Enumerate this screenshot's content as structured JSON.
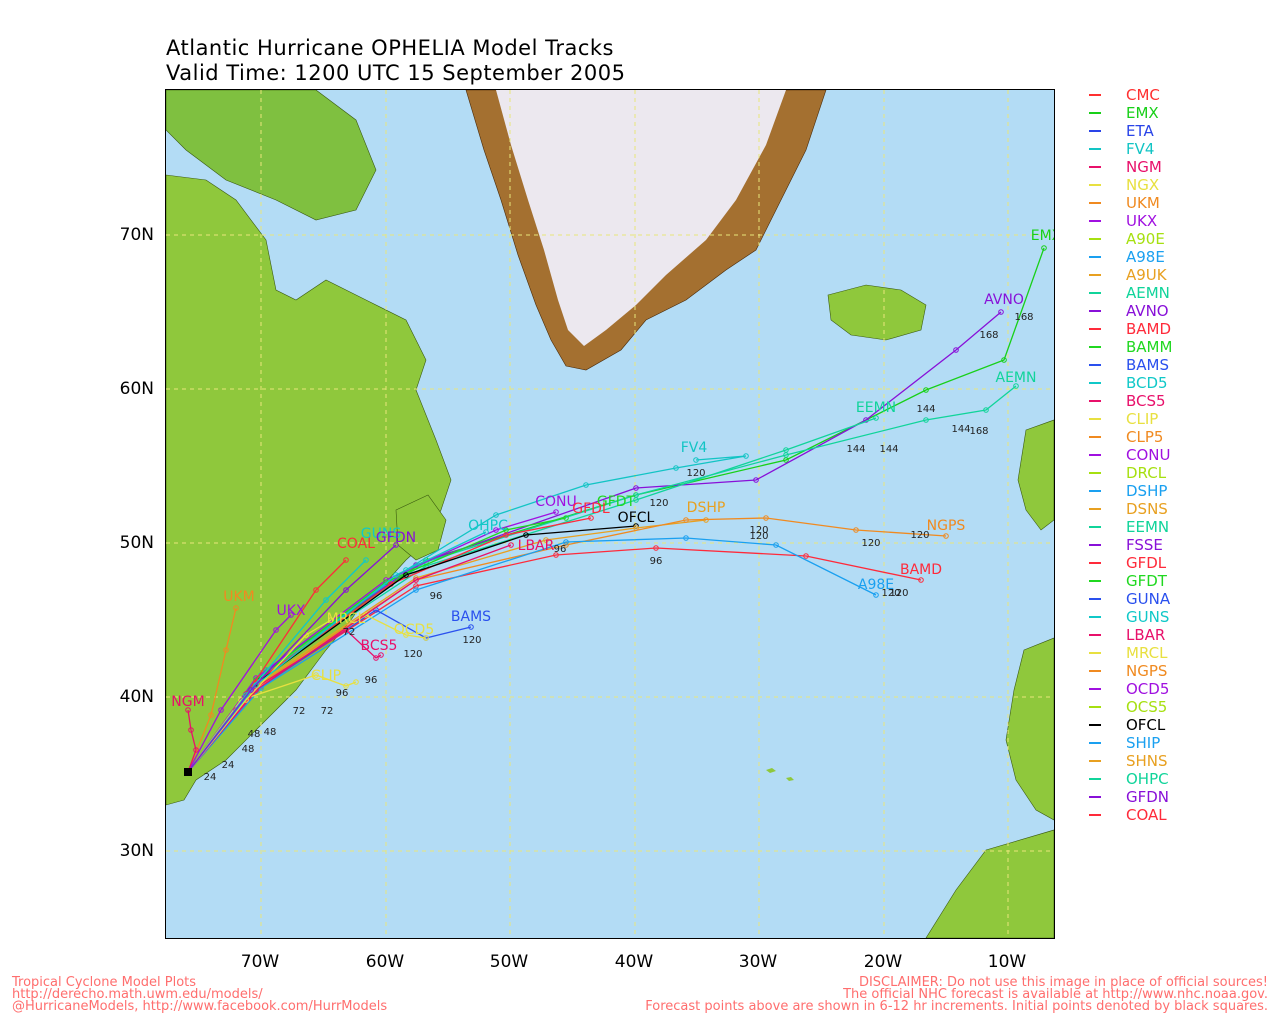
{
  "title": {
    "line1": "Atlantic Hurricane OPHELIA Model Tracks",
    "line2": "Valid Time: 1200 UTC 15 September 2005"
  },
  "axes": {
    "lat_ticks": [
      "70N",
      "60N",
      "50N",
      "40N",
      "30N"
    ],
    "lon_ticks": [
      "70W",
      "60W",
      "50W",
      "40W",
      "30W",
      "20W",
      "10W"
    ]
  },
  "map_colors": {
    "ocean": "#b3dcf5",
    "lowland": "#8fc83c",
    "highland": "#7a4a18",
    "ice": "#ece8ef",
    "grid": "#e8e67a"
  },
  "legend": [
    {
      "name": "CMC",
      "color": "#ff3030"
    },
    {
      "name": "EMX",
      "color": "#18d018"
    },
    {
      "name": "ETA",
      "color": "#2a44e8"
    },
    {
      "name": "FV4",
      "color": "#12c4c4"
    },
    {
      "name": "NGM",
      "color": "#e8106a"
    },
    {
      "name": "NGX",
      "color": "#e8e040"
    },
    {
      "name": "UKM",
      "color": "#f08a20"
    },
    {
      "name": "UKX",
      "color": "#a010e0"
    },
    {
      "name": "A90E",
      "color": "#a6e010"
    },
    {
      "name": "A98E",
      "color": "#1aa0f0"
    },
    {
      "name": "A9UK",
      "color": "#e8a020"
    },
    {
      "name": "AEMN",
      "color": "#10d49a"
    },
    {
      "name": "AVNO",
      "color": "#8810d8"
    },
    {
      "name": "BAMD",
      "color": "#ff2a3a"
    },
    {
      "name": "BAMM",
      "color": "#20d820"
    },
    {
      "name": "BAMS",
      "color": "#2a50ee"
    },
    {
      "name": "BCD5",
      "color": "#10c8c8"
    },
    {
      "name": "BCS5",
      "color": "#e8106a"
    },
    {
      "name": "CLIP",
      "color": "#e8e040"
    },
    {
      "name": "CLP5",
      "color": "#f08a20"
    },
    {
      "name": "CONU",
      "color": "#a010e0"
    },
    {
      "name": "DRCL",
      "color": "#a6e010"
    },
    {
      "name": "DSHP",
      "color": "#1aa0f0"
    },
    {
      "name": "DSNS",
      "color": "#e8a020"
    },
    {
      "name": "EEMN",
      "color": "#10d49a"
    },
    {
      "name": "FSSE",
      "color": "#8810d8"
    },
    {
      "name": "GFDL",
      "color": "#ff2a3a"
    },
    {
      "name": "GFDT",
      "color": "#20d820"
    },
    {
      "name": "GUNA",
      "color": "#2a50ee"
    },
    {
      "name": "GUNS",
      "color": "#10c8c8"
    },
    {
      "name": "LBAR",
      "color": "#e8106a"
    },
    {
      "name": "MRCL",
      "color": "#e8e040"
    },
    {
      "name": "NGPS",
      "color": "#f08a20"
    },
    {
      "name": "OCD5",
      "color": "#a010e0"
    },
    {
      "name": "OCS5",
      "color": "#a6e010"
    },
    {
      "name": "OFCL",
      "color": "#000000"
    },
    {
      "name": "SHIP",
      "color": "#1aa0f0"
    },
    {
      "name": "SHNS",
      "color": "#e8a020"
    },
    {
      "name": "OHPC",
      "color": "#10d49a"
    },
    {
      "name": "GFDN",
      "color": "#8810d8"
    },
    {
      "name": "COAL",
      "color": "#ff2a3a"
    }
  ],
  "track_labels": [
    {
      "name": "EMX",
      "color": "#18d018"
    },
    {
      "name": "AVNO",
      "color": "#8810d8"
    },
    {
      "name": "AEMN",
      "color": "#10d49a"
    },
    {
      "name": "EEMN",
      "color": "#10d49a"
    },
    {
      "name": "FV4",
      "color": "#12c4c4"
    },
    {
      "name": "CONU",
      "color": "#a010e0"
    },
    {
      "name": "GFDT",
      "color": "#20d820"
    },
    {
      "name": "GFDL",
      "color": "#ff2a3a"
    },
    {
      "name": "OFCL",
      "color": "#000000"
    },
    {
      "name": "DSHP",
      "color": "#e8a020"
    },
    {
      "name": "NGPS",
      "color": "#f08a20"
    },
    {
      "name": "BAMD",
      "color": "#ff2a3a"
    },
    {
      "name": "A98E",
      "color": "#1aa0f0"
    },
    {
      "name": "BAMS",
      "color": "#2a50ee"
    },
    {
      "name": "OCD5",
      "color": "#e8e040"
    },
    {
      "name": "BCS5",
      "color": "#e8106a"
    },
    {
      "name": "CLIP",
      "color": "#e8e040"
    },
    {
      "name": "UKM",
      "color": "#f08a20"
    },
    {
      "name": "UKX",
      "color": "#a010e0"
    },
    {
      "name": "NGM",
      "color": "#e8106a"
    },
    {
      "name": "COAL",
      "color": "#ff2a3a"
    },
    {
      "name": "LBAR",
      "color": "#e8106a"
    },
    {
      "name": "MRCL",
      "color": "#e8e040"
    },
    {
      "name": "OHPC",
      "color": "#10c8c8"
    },
    {
      "name": "GUNS",
      "color": "#10c8c8"
    },
    {
      "name": "GFDN",
      "color": "#8810d8"
    }
  ],
  "hour_labels": [
    "168",
    "168",
    "168",
    "144",
    "144",
    "144",
    "144",
    "120",
    "120",
    "120",
    "120",
    "120",
    "120",
    "120",
    "120",
    "120",
    "120",
    "96",
    "96",
    "96",
    "96",
    "96",
    "72",
    "72",
    "72",
    "48",
    "48",
    "48",
    "24",
    "24"
  ],
  "footer": {
    "left": [
      "Tropical Cyclone Model Plots",
      "http://derecho.math.uwm.edu/models/",
      "@HurricaneModels, http://www.facebook.com/HurrModels"
    ],
    "right": [
      "DISCLAIMER: Do not use this image in place of official sources!",
      "The official NHC forecast is available at http://www.nhc.noaa.gov.",
      "Forecast points above are shown in 6-12 hr increments. Initial points denoted by black squares."
    ]
  }
}
